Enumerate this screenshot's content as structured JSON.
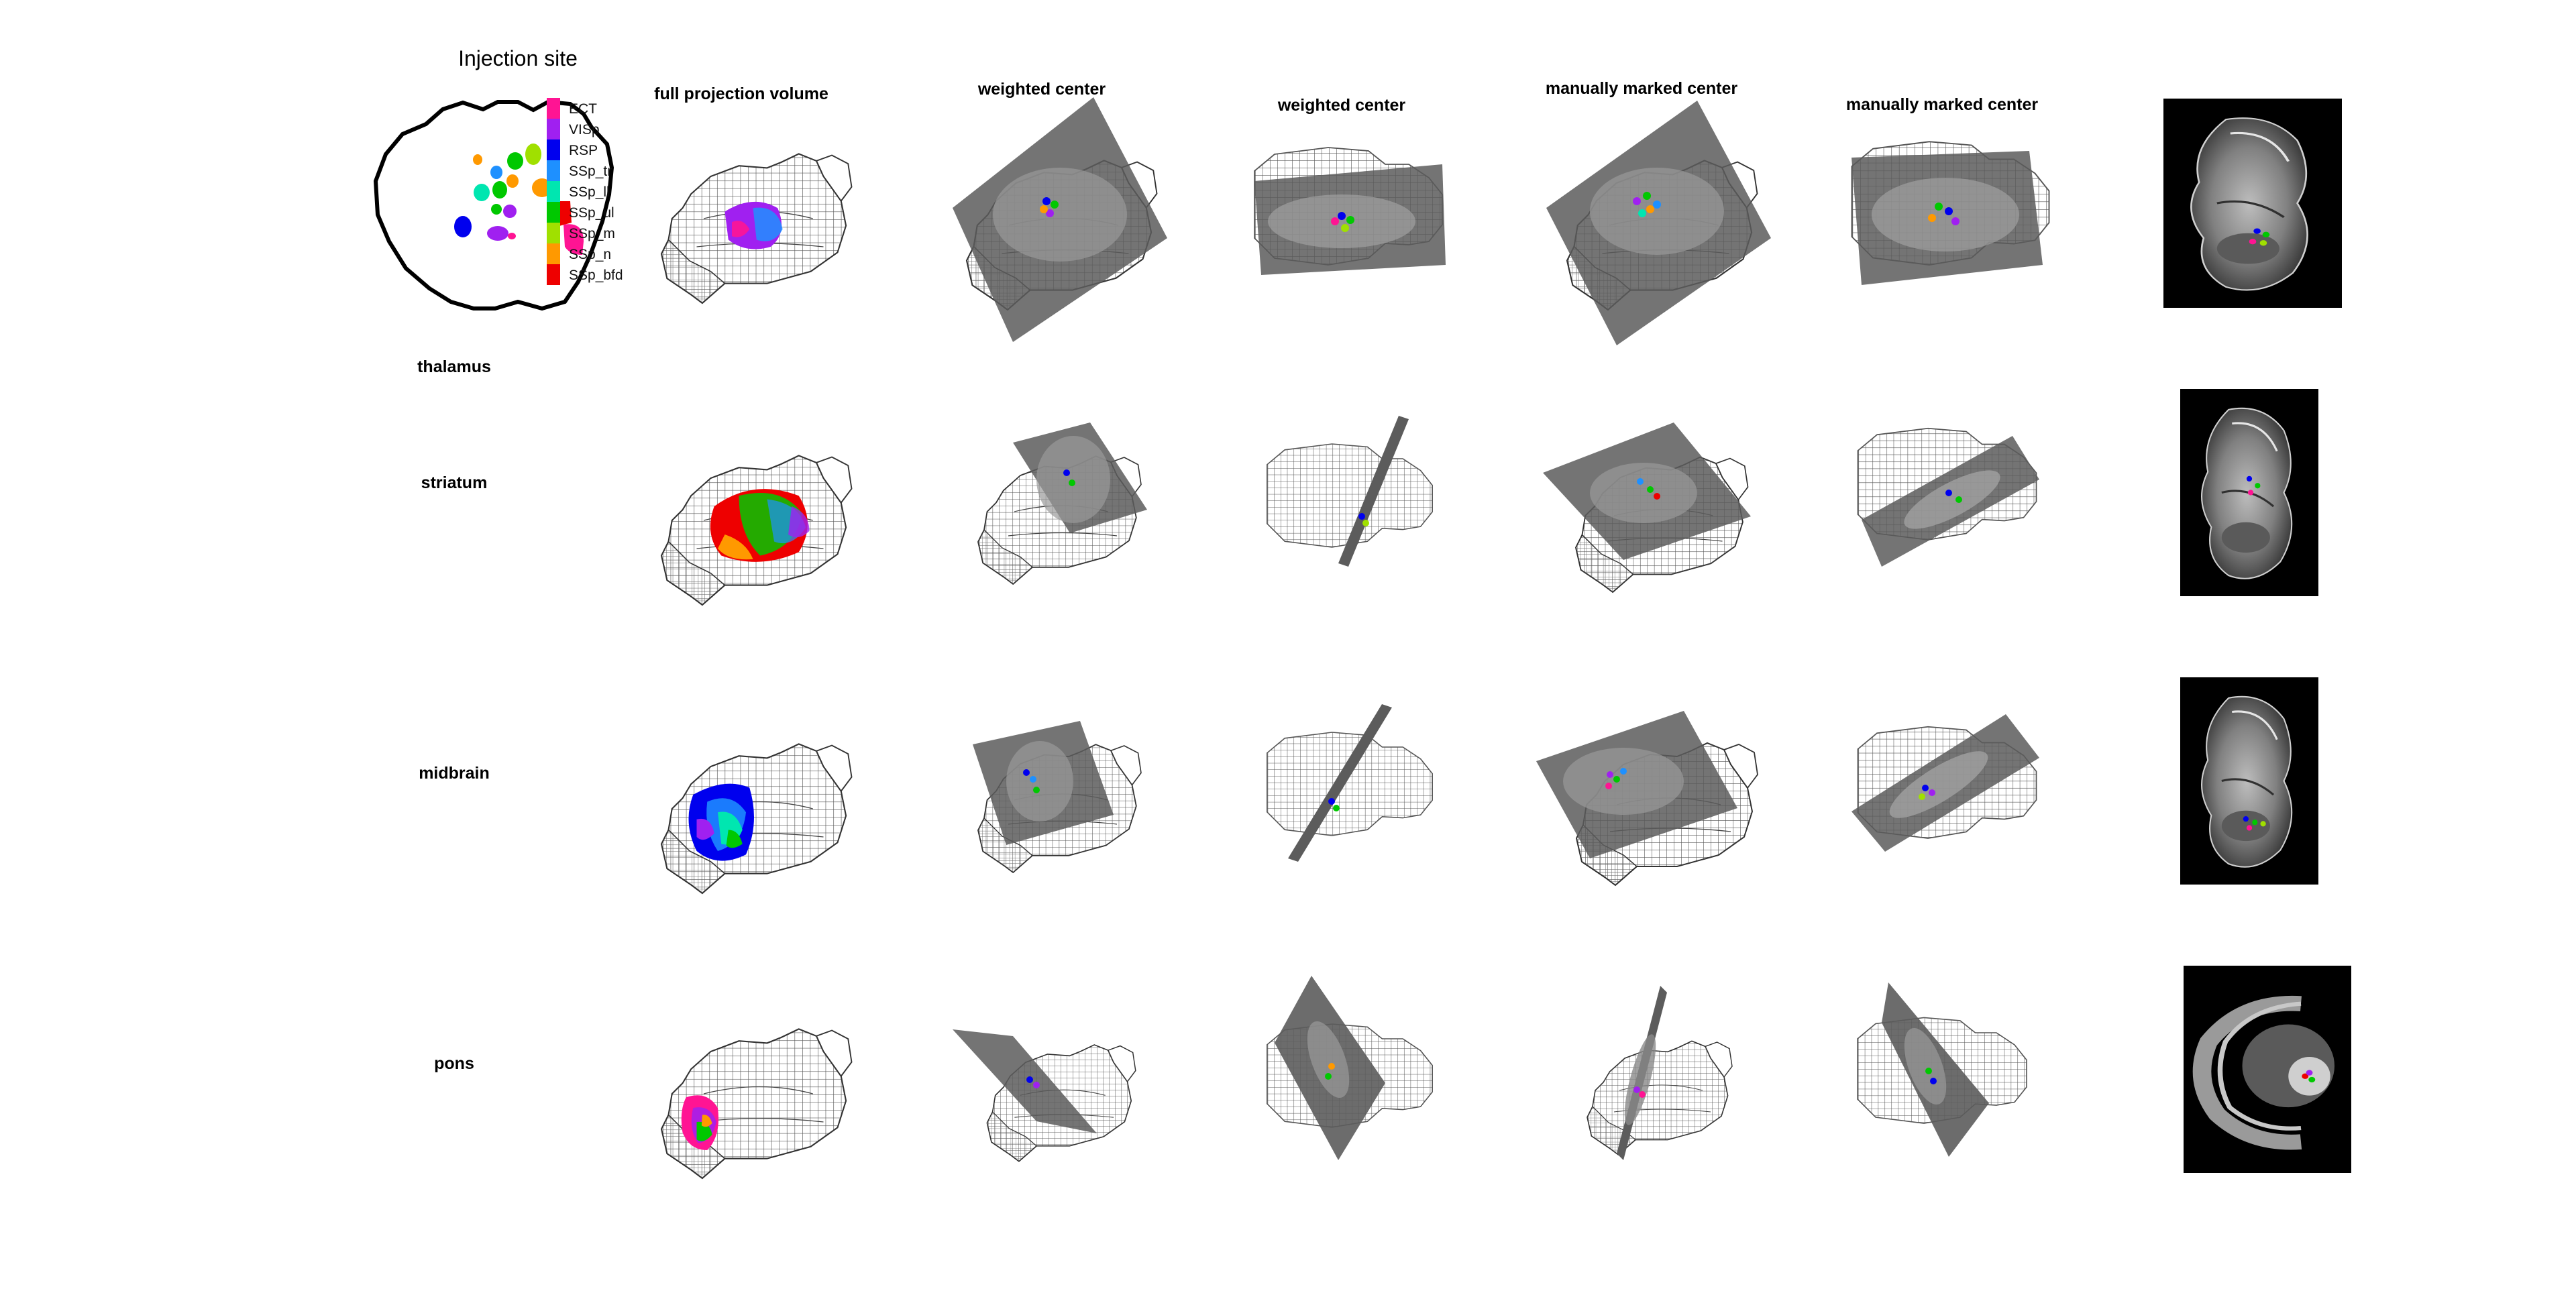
{
  "figure": {
    "title": "Injection site",
    "column_headers": [
      "full projection volume",
      "weighted center",
      "weighted center",
      "manually marked center",
      "manually marked center"
    ],
    "row_labels": [
      "thalamus",
      "striatum",
      "midbrain",
      "pons"
    ],
    "legend": [
      {
        "label": "ECT",
        "color": "#ff1493"
      },
      {
        "label": "VISp",
        "color": "#a020f0"
      },
      {
        "label": "RSP",
        "color": "#0000ee"
      },
      {
        "label": "SSp_tr",
        "color": "#1e90ff"
      },
      {
        "label": "SSp_ll",
        "color": "#00e6b0"
      },
      {
        "label": "SSp_ul",
        "color": "#00c800"
      },
      {
        "label": "SSp_m",
        "color": "#a0e000"
      },
      {
        "label": "SSp_n",
        "color": "#ff9900"
      },
      {
        "label": "SSp_bfd",
        "color": "#ee0000"
      }
    ],
    "colors": {
      "wireframe": "#555555",
      "slice_plane": "#5c5c5c",
      "section_background": "#000000",
      "outline": "#000000"
    }
  }
}
